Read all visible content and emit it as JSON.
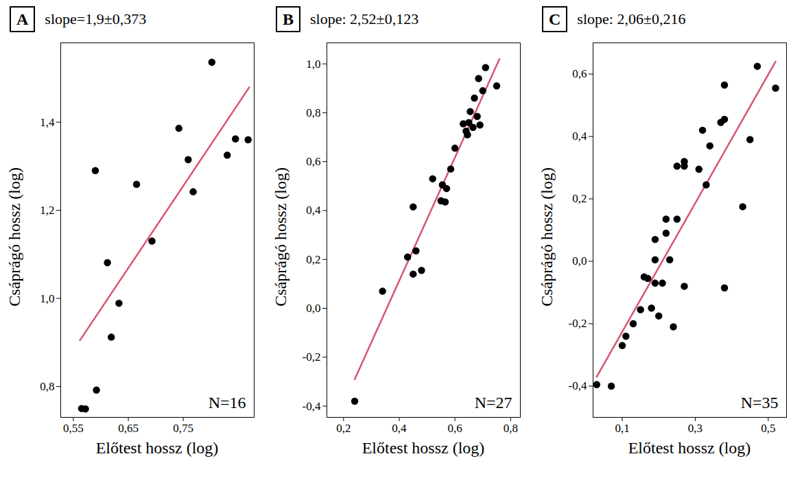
{
  "chart_data": [
    {
      "type": "scatter",
      "panel_label": "A",
      "title": "slope=1,9±0,373",
      "x_label": "Előtest hossz (log)",
      "y_label": "Csáprágó hossz (log)",
      "annotation": "N=16",
      "color": "#000000",
      "marker": "circle",
      "grid": false,
      "x": [
        0.565,
        0.572,
        0.592,
        0.59,
        0.612,
        0.619,
        0.633,
        0.665,
        0.693,
        0.742,
        0.759,
        0.768,
        0.802,
        0.83,
        0.845,
        0.868
      ],
      "values": [
        0.75,
        0.749,
        0.792,
        1.29,
        1.081,
        0.912,
        0.989,
        1.259,
        1.13,
        1.386,
        1.315,
        1.242,
        1.536,
        1.325,
        1.362,
        1.36
      ],
      "fit_line": {
        "x": [
          0.562,
          0.87
        ],
        "y": [
          0.905,
          1.479
        ],
        "color": "#d9546e"
      },
      "xlim": [
        0.527,
        0.879
      ],
      "ylim": [
        0.73,
        1.58
      ],
      "xticks": [
        {
          "value": 0.55,
          "label": "0,55"
        },
        {
          "value": 0.65,
          "label": "0,65"
        },
        {
          "value": 0.75,
          "label": "0,75"
        }
      ],
      "yticks": [
        {
          "value": 0.8,
          "label": "0,8"
        },
        {
          "value": 1.0,
          "label": "1,0"
        },
        {
          "value": 1.2,
          "label": "1,2"
        },
        {
          "value": 1.4,
          "label": "1,4"
        }
      ]
    },
    {
      "type": "scatter",
      "panel_label": "B",
      "title": "slope: 2,52±0,123",
      "x_label": "Előtest hossz (log)",
      "y_label": "Csáprágó hossz (log)",
      "annotation": "N=27",
      "color": "#000000",
      "marker": "circle",
      "grid": false,
      "x": [
        0.24,
        0.34,
        0.43,
        0.45,
        0.45,
        0.46,
        0.48,
        0.52,
        0.55,
        0.555,
        0.565,
        0.57,
        0.585,
        0.6,
        0.63,
        0.64,
        0.645,
        0.65,
        0.655,
        0.665,
        0.67,
        0.68,
        0.685,
        0.69,
        0.7,
        0.71,
        0.75
      ],
      "values": [
        -0.38,
        0.07,
        0.21,
        0.14,
        0.415,
        0.235,
        0.155,
        0.53,
        0.44,
        0.505,
        0.435,
        0.49,
        0.57,
        0.655,
        0.755,
        0.725,
        0.71,
        0.76,
        0.805,
        0.74,
        0.86,
        0.785,
        0.94,
        0.75,
        0.89,
        0.985,
        0.91
      ],
      "fit_line": {
        "x": [
          0.24,
          0.76
        ],
        "y": [
          -0.29,
          1.02
        ],
        "color": "#d9546e"
      },
      "xlim": [
        0.14,
        0.835
      ],
      "ylim": [
        -0.446,
        1.086
      ],
      "xticks": [
        {
          "value": 0.2,
          "label": "0,2"
        },
        {
          "value": 0.4,
          "label": "0,4"
        },
        {
          "value": 0.6,
          "label": "0,6"
        },
        {
          "value": 0.8,
          "label": "0,8"
        }
      ],
      "yticks": [
        {
          "value": -0.4,
          "label": "-0,4"
        },
        {
          "value": -0.2,
          "label": "-0,2"
        },
        {
          "value": 0.0,
          "label": "0,0"
        },
        {
          "value": 0.2,
          "label": "0,2"
        },
        {
          "value": 0.4,
          "label": "0,4"
        },
        {
          "value": 0.6,
          "label": "0,6"
        },
        {
          "value": 0.8,
          "label": "0,8"
        },
        {
          "value": 1.0,
          "label": "1,0"
        }
      ]
    },
    {
      "type": "scatter",
      "panel_label": "C",
      "title": "slope: 2,06±0,216",
      "x_label": "Előtest hossz (log)",
      "y_label": "Csáprágó hossz (log)",
      "annotation": "N=35",
      "color": "#000000",
      "marker": "circle",
      "grid": false,
      "x": [
        0.03,
        0.07,
        0.1,
        0.11,
        0.13,
        0.15,
        0.16,
        0.17,
        0.18,
        0.19,
        0.19,
        0.19,
        0.2,
        0.21,
        0.22,
        0.22,
        0.23,
        0.24,
        0.25,
        0.25,
        0.27,
        0.27,
        0.27,
        0.31,
        0.32,
        0.33,
        0.34,
        0.37,
        0.38,
        0.38,
        0.38,
        0.43,
        0.45,
        0.47,
        0.52
      ],
      "values": [
        -0.395,
        -0.4,
        -0.27,
        -0.24,
        -0.2,
        -0.155,
        -0.05,
        -0.055,
        -0.15,
        0.07,
        0.005,
        -0.07,
        -0.175,
        -0.07,
        0.09,
        0.135,
        0.005,
        -0.21,
        0.305,
        0.135,
        0.32,
        0.305,
        -0.08,
        0.295,
        0.42,
        0.245,
        0.37,
        0.445,
        0.565,
        0.455,
        -0.085,
        0.175,
        0.39,
        0.625,
        0.555
      ],
      "fit_line": {
        "x": [
          0.03,
          0.52
        ],
        "y": [
          -0.37,
          0.64
        ],
        "color": "#d9546e"
      },
      "xlim": [
        0.02,
        0.55
      ],
      "ylim": [
        -0.5,
        0.7
      ],
      "xticks": [
        {
          "value": 0.1,
          "label": "0,1"
        },
        {
          "value": 0.3,
          "label": "0,3"
        },
        {
          "value": 0.5,
          "label": "0,5"
        }
      ],
      "yticks": [
        {
          "value": -0.4,
          "label": "-0,4"
        },
        {
          "value": -0.2,
          "label": "-0,2"
        },
        {
          "value": 0.0,
          "label": "0,0"
        },
        {
          "value": 0.2,
          "label": "0,2"
        },
        {
          "value": 0.4,
          "label": "0,4"
        },
        {
          "value": 0.6,
          "label": "0,6"
        }
      ]
    }
  ]
}
